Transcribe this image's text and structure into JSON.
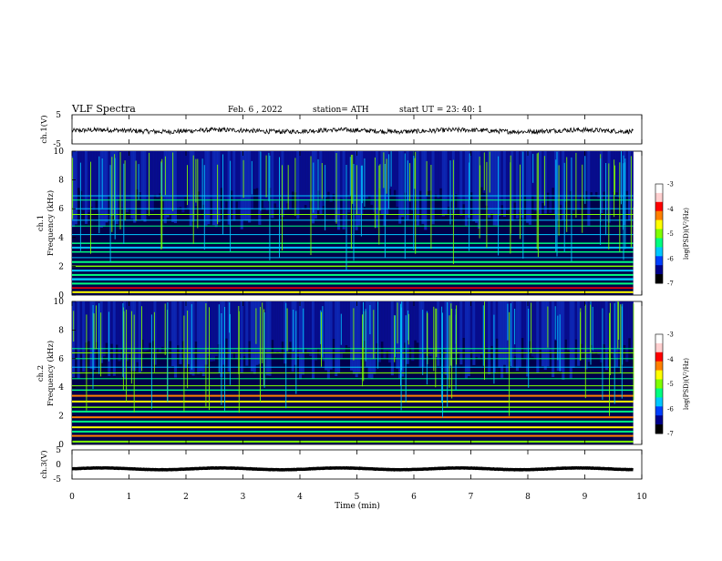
{
  "header": {
    "title": "VLF  Spectra",
    "date": "Feb. 6  , 2022",
    "station": "station= ATH",
    "start": "start  UT  =   23: 40: 1"
  },
  "chart_data": [
    {
      "type": "line",
      "ylabel": "ch.1(V)",
      "ylim": [
        -5,
        5
      ],
      "yticks": [
        "5",
        "-5"
      ],
      "description_series": "ch.1 waveform",
      "baseline": -0.5
    },
    {
      "type": "heatmap",
      "ylabel": "ch.1\nFrequency  (kHz)",
      "ylabel_lines": [
        "ch.1",
        "Frequency  (kHz)"
      ],
      "ylim": [
        0,
        10
      ],
      "yticks": [
        "0",
        "2",
        "4",
        "6",
        "8",
        "10"
      ],
      "colorbar": {
        "label": "log(PSD)(V²/Hz)",
        "ticks": [
          "-3",
          "-4",
          "-5",
          "-6",
          "-7"
        ],
        "range": [
          -7,
          -3
        ]
      }
    },
    {
      "type": "heatmap",
      "ylabel": "ch.2\nFrequency  (kHz)",
      "ylabel_lines": [
        "ch.2",
        "Frequency  (kHz)"
      ],
      "ylim": [
        0,
        10
      ],
      "yticks": [
        "0",
        "2",
        "4",
        "6",
        "8",
        "10"
      ],
      "colorbar": {
        "label": "log(PSD)(V²/Hz)",
        "ticks": [
          "-3",
          "-4",
          "-5",
          "-6",
          "-7"
        ],
        "range": [
          -7,
          -3
        ]
      }
    },
    {
      "type": "line",
      "ylabel": "ch.3(V)",
      "ylim": [
        -5,
        5
      ],
      "yticks": [
        "5",
        "0",
        "-5"
      ],
      "baseline": -1.5
    }
  ],
  "x_axis": {
    "label": "Time  (min)",
    "ticks": [
      "0",
      "1",
      "2",
      "3",
      "4",
      "5",
      "6",
      "7",
      "8",
      "9",
      "10"
    ],
    "range": [
      0,
      10
    ]
  },
  "colors": {
    "background_dark": "#000a40",
    "colormap": [
      "#000000",
      "#00008b",
      "#0040ff",
      "#00c8ff",
      "#00ff80",
      "#80ff00",
      "#ffff00",
      "#ff8000",
      "#ff0000",
      "#ffd0d0",
      "#ffffff"
    ]
  }
}
